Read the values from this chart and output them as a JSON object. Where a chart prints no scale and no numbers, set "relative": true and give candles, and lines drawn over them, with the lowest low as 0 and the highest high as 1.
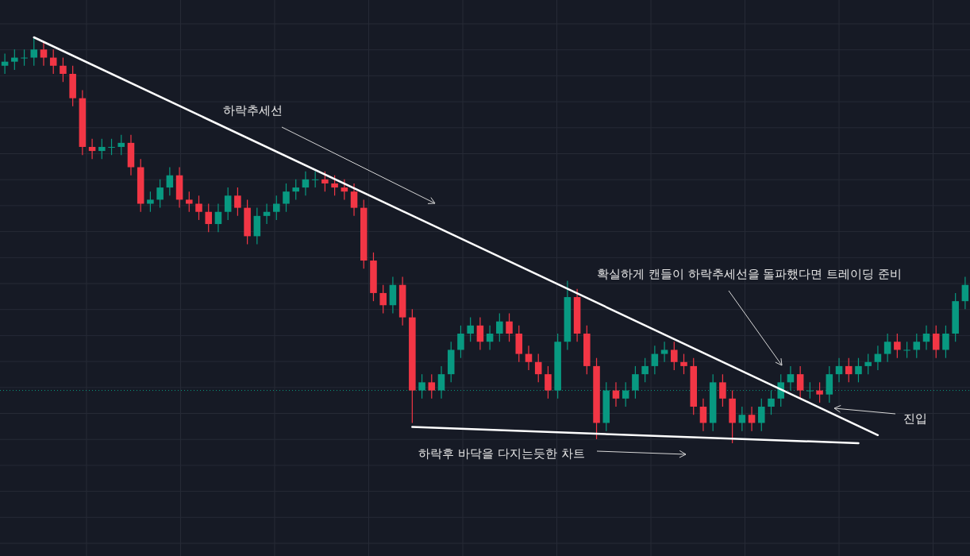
{
  "chart_data": {
    "type": "candlestick",
    "relative": true,
    "grid": true,
    "categories": [
      null,
      null,
      null,
      null,
      null,
      null,
      null,
      null,
      null,
      null,
      null,
      null,
      null,
      null,
      null,
      null,
      null,
      null,
      null,
      null,
      null,
      null,
      null,
      null,
      null,
      null,
      null,
      null,
      null,
      null,
      null,
      null,
      null,
      null,
      null,
      null,
      null,
      null,
      null,
      null,
      null,
      null,
      null,
      null,
      null,
      null,
      null,
      null,
      null,
      null,
      null,
      null,
      null,
      null,
      null,
      null,
      null,
      null,
      null,
      null,
      null,
      null,
      null,
      null,
      null,
      null,
      null,
      null,
      null,
      null,
      null,
      null,
      null,
      null,
      null,
      null,
      null,
      null,
      null,
      null,
      null,
      null,
      null,
      null,
      null,
      null,
      null,
      null,
      null,
      null,
      null,
      null,
      null,
      null,
      null,
      null,
      null,
      null,
      null,
      null
    ],
    "ohlc": [
      [
        0.93,
        0.96,
        0.91,
        0.94
      ],
      [
        0.94,
        0.97,
        0.92,
        0.95
      ],
      [
        0.95,
        0.97,
        0.93,
        0.95
      ],
      [
        0.95,
        1.0,
        0.93,
        0.97
      ],
      [
        0.97,
        0.99,
        0.93,
        0.95
      ],
      [
        0.95,
        0.97,
        0.91,
        0.93
      ],
      [
        0.93,
        0.95,
        0.89,
        0.91
      ],
      [
        0.91,
        0.93,
        0.83,
        0.85
      ],
      [
        0.85,
        0.87,
        0.71,
        0.73
      ],
      [
        0.73,
        0.75,
        0.7,
        0.72
      ],
      [
        0.72,
        0.75,
        0.7,
        0.73
      ],
      [
        0.73,
        0.75,
        0.71,
        0.73
      ],
      [
        0.73,
        0.76,
        0.71,
        0.74
      ],
      [
        0.74,
        0.76,
        0.66,
        0.68
      ],
      [
        0.68,
        0.7,
        0.57,
        0.59
      ],
      [
        0.59,
        0.62,
        0.57,
        0.6
      ],
      [
        0.6,
        0.65,
        0.58,
        0.63
      ],
      [
        0.63,
        0.68,
        0.61,
        0.66
      ],
      [
        0.66,
        0.68,
        0.58,
        0.6
      ],
      [
        0.6,
        0.62,
        0.57,
        0.59
      ],
      [
        0.59,
        0.61,
        0.55,
        0.57
      ],
      [
        0.57,
        0.59,
        0.52,
        0.54
      ],
      [
        0.54,
        0.59,
        0.52,
        0.57
      ],
      [
        0.57,
        0.63,
        0.55,
        0.61
      ],
      [
        0.61,
        0.63,
        0.56,
        0.58
      ],
      [
        0.58,
        0.6,
        0.49,
        0.51
      ],
      [
        0.51,
        0.58,
        0.49,
        0.56
      ],
      [
        0.56,
        0.59,
        0.54,
        0.57
      ],
      [
        0.57,
        0.61,
        0.55,
        0.59
      ],
      [
        0.59,
        0.64,
        0.57,
        0.62
      ],
      [
        0.62,
        0.65,
        0.6,
        0.63
      ],
      [
        0.63,
        0.67,
        0.61,
        0.65
      ],
      [
        0.65,
        0.67,
        0.63,
        0.65
      ],
      [
        0.65,
        0.67,
        0.62,
        0.64
      ],
      [
        0.64,
        0.66,
        0.61,
        0.63
      ],
      [
        0.63,
        0.65,
        0.6,
        0.62
      ],
      [
        0.62,
        0.64,
        0.56,
        0.58
      ],
      [
        0.58,
        0.6,
        0.43,
        0.45
      ],
      [
        0.45,
        0.47,
        0.35,
        0.37
      ],
      [
        0.37,
        0.39,
        0.32,
        0.34
      ],
      [
        0.34,
        0.41,
        0.32,
        0.39
      ],
      [
        0.39,
        0.41,
        0.29,
        0.31
      ],
      [
        0.31,
        0.33,
        0.05,
        0.13
      ],
      [
        0.13,
        0.17,
        0.11,
        0.15
      ],
      [
        0.15,
        0.17,
        0.11,
        0.13
      ],
      [
        0.13,
        0.19,
        0.11,
        0.17
      ],
      [
        0.17,
        0.25,
        0.15,
        0.23
      ],
      [
        0.23,
        0.29,
        0.21,
        0.27
      ],
      [
        0.27,
        0.31,
        0.25,
        0.29
      ],
      [
        0.29,
        0.31,
        0.23,
        0.25
      ],
      [
        0.25,
        0.29,
        0.23,
        0.27
      ],
      [
        0.27,
        0.32,
        0.25,
        0.3
      ],
      [
        0.3,
        0.32,
        0.25,
        0.27
      ],
      [
        0.27,
        0.29,
        0.2,
        0.22
      ],
      [
        0.22,
        0.24,
        0.18,
        0.2
      ],
      [
        0.2,
        0.22,
        0.15,
        0.17
      ],
      [
        0.17,
        0.19,
        0.11,
        0.13
      ],
      [
        0.13,
        0.27,
        0.11,
        0.25
      ],
      [
        0.25,
        0.4,
        0.23,
        0.36
      ],
      [
        0.36,
        0.38,
        0.25,
        0.27
      ],
      [
        0.27,
        0.29,
        0.17,
        0.19
      ],
      [
        0.19,
        0.21,
        0.01,
        0.05
      ],
      [
        0.05,
        0.15,
        0.03,
        0.13
      ],
      [
        0.13,
        0.15,
        0.09,
        0.11
      ],
      [
        0.11,
        0.15,
        0.09,
        0.13
      ],
      [
        0.13,
        0.19,
        0.11,
        0.17
      ],
      [
        0.17,
        0.21,
        0.15,
        0.19
      ],
      [
        0.19,
        0.24,
        0.17,
        0.22
      ],
      [
        0.22,
        0.25,
        0.2,
        0.23
      ],
      [
        0.23,
        0.25,
        0.18,
        0.2
      ],
      [
        0.2,
        0.22,
        0.17,
        0.19
      ],
      [
        0.19,
        0.21,
        0.07,
        0.09
      ],
      [
        0.09,
        0.11,
        0.03,
        0.05
      ],
      [
        0.05,
        0.17,
        0.03,
        0.15
      ],
      [
        0.15,
        0.17,
        0.09,
        0.11
      ],
      [
        0.11,
        0.13,
        0.0,
        0.05
      ],
      [
        0.05,
        0.09,
        0.03,
        0.07
      ],
      [
        0.07,
        0.09,
        0.03,
        0.05
      ],
      [
        0.05,
        0.11,
        0.03,
        0.09
      ],
      [
        0.09,
        0.13,
        0.07,
        0.11
      ],
      [
        0.11,
        0.17,
        0.09,
        0.15
      ],
      [
        0.15,
        0.19,
        0.13,
        0.17
      ],
      [
        0.17,
        0.19,
        0.11,
        0.13
      ],
      [
        0.13,
        0.15,
        0.11,
        0.13
      ],
      [
        0.13,
        0.15,
        0.1,
        0.12
      ],
      [
        0.12,
        0.19,
        0.1,
        0.17
      ],
      [
        0.17,
        0.21,
        0.15,
        0.19
      ],
      [
        0.19,
        0.21,
        0.15,
        0.17
      ],
      [
        0.17,
        0.21,
        0.15,
        0.19
      ],
      [
        0.19,
        0.22,
        0.17,
        0.2
      ],
      [
        0.2,
        0.24,
        0.18,
        0.22
      ],
      [
        0.22,
        0.27,
        0.2,
        0.25
      ],
      [
        0.25,
        0.27,
        0.21,
        0.23
      ],
      [
        0.23,
        0.25,
        0.21,
        0.23
      ],
      [
        0.23,
        0.27,
        0.21,
        0.25
      ],
      [
        0.25,
        0.29,
        0.23,
        0.27
      ],
      [
        0.27,
        0.29,
        0.21,
        0.23
      ],
      [
        0.23,
        0.29,
        0.21,
        0.27
      ],
      [
        0.27,
        0.37,
        0.25,
        0.35
      ],
      [
        0.35,
        0.41,
        0.33,
        0.39
      ]
    ],
    "series": [
      {
        "type": "line",
        "color": "#ffffff",
        "values": [
          null,
          null,
          null,
          1.0,
          null,
          null,
          null,
          null,
          null,
          null,
          null,
          null,
          null,
          null,
          null,
          null,
          null,
          null,
          null,
          null,
          null,
          null,
          null,
          null,
          null,
          null,
          null,
          null,
          null,
          null,
          null,
          null,
          null,
          null,
          null,
          null,
          null,
          null,
          null,
          null,
          null,
          null,
          null,
          null,
          null,
          null,
          null,
          null,
          null,
          null,
          null,
          null,
          null,
          null,
          null,
          null,
          null,
          null,
          null,
          null,
          null,
          null,
          null,
          null,
          null,
          null,
          null,
          null,
          null,
          null,
          null,
          null,
          null,
          null,
          null,
          null,
          null,
          null,
          null,
          null,
          null,
          null,
          null,
          null,
          null,
          null,
          null,
          null,
          null,
          null,
          0.02,
          null,
          null,
          null,
          null,
          null,
          null,
          null,
          null,
          null
        ]
      },
      {
        "type": "line",
        "color": "#ffffff",
        "values": [
          null,
          null,
          null,
          null,
          null,
          null,
          null,
          null,
          null,
          null,
          null,
          null,
          null,
          null,
          null,
          null,
          null,
          null,
          null,
          null,
          null,
          null,
          null,
          null,
          null,
          null,
          null,
          null,
          null,
          null,
          null,
          null,
          null,
          null,
          null,
          null,
          null,
          null,
          null,
          null,
          null,
          null,
          0.04,
          null,
          null,
          null,
          null,
          null,
          null,
          null,
          null,
          null,
          null,
          null,
          null,
          null,
          null,
          null,
          null,
          null,
          null,
          null,
          null,
          null,
          null,
          null,
          null,
          null,
          null,
          null,
          null,
          null,
          null,
          null,
          null,
          null,
          null,
          null,
          null,
          null,
          null,
          null,
          null,
          null,
          null,
          null,
          null,
          null,
          0.0,
          null,
          null,
          null,
          null,
          null,
          null,
          null,
          null,
          null,
          null,
          null
        ]
      }
    ],
    "ref_lines": [
      {
        "axis": "y",
        "value": 0.13,
        "color": "#089981",
        "line_style": "dotted"
      }
    ],
    "annotations": [
      "하락추세선",
      "확실하게 캔들이 하락추세선을 돌파했다면 트레이딩 준비",
      "하락후 바닥을 다지는듯한 차트",
      "진입"
    ]
  }
}
